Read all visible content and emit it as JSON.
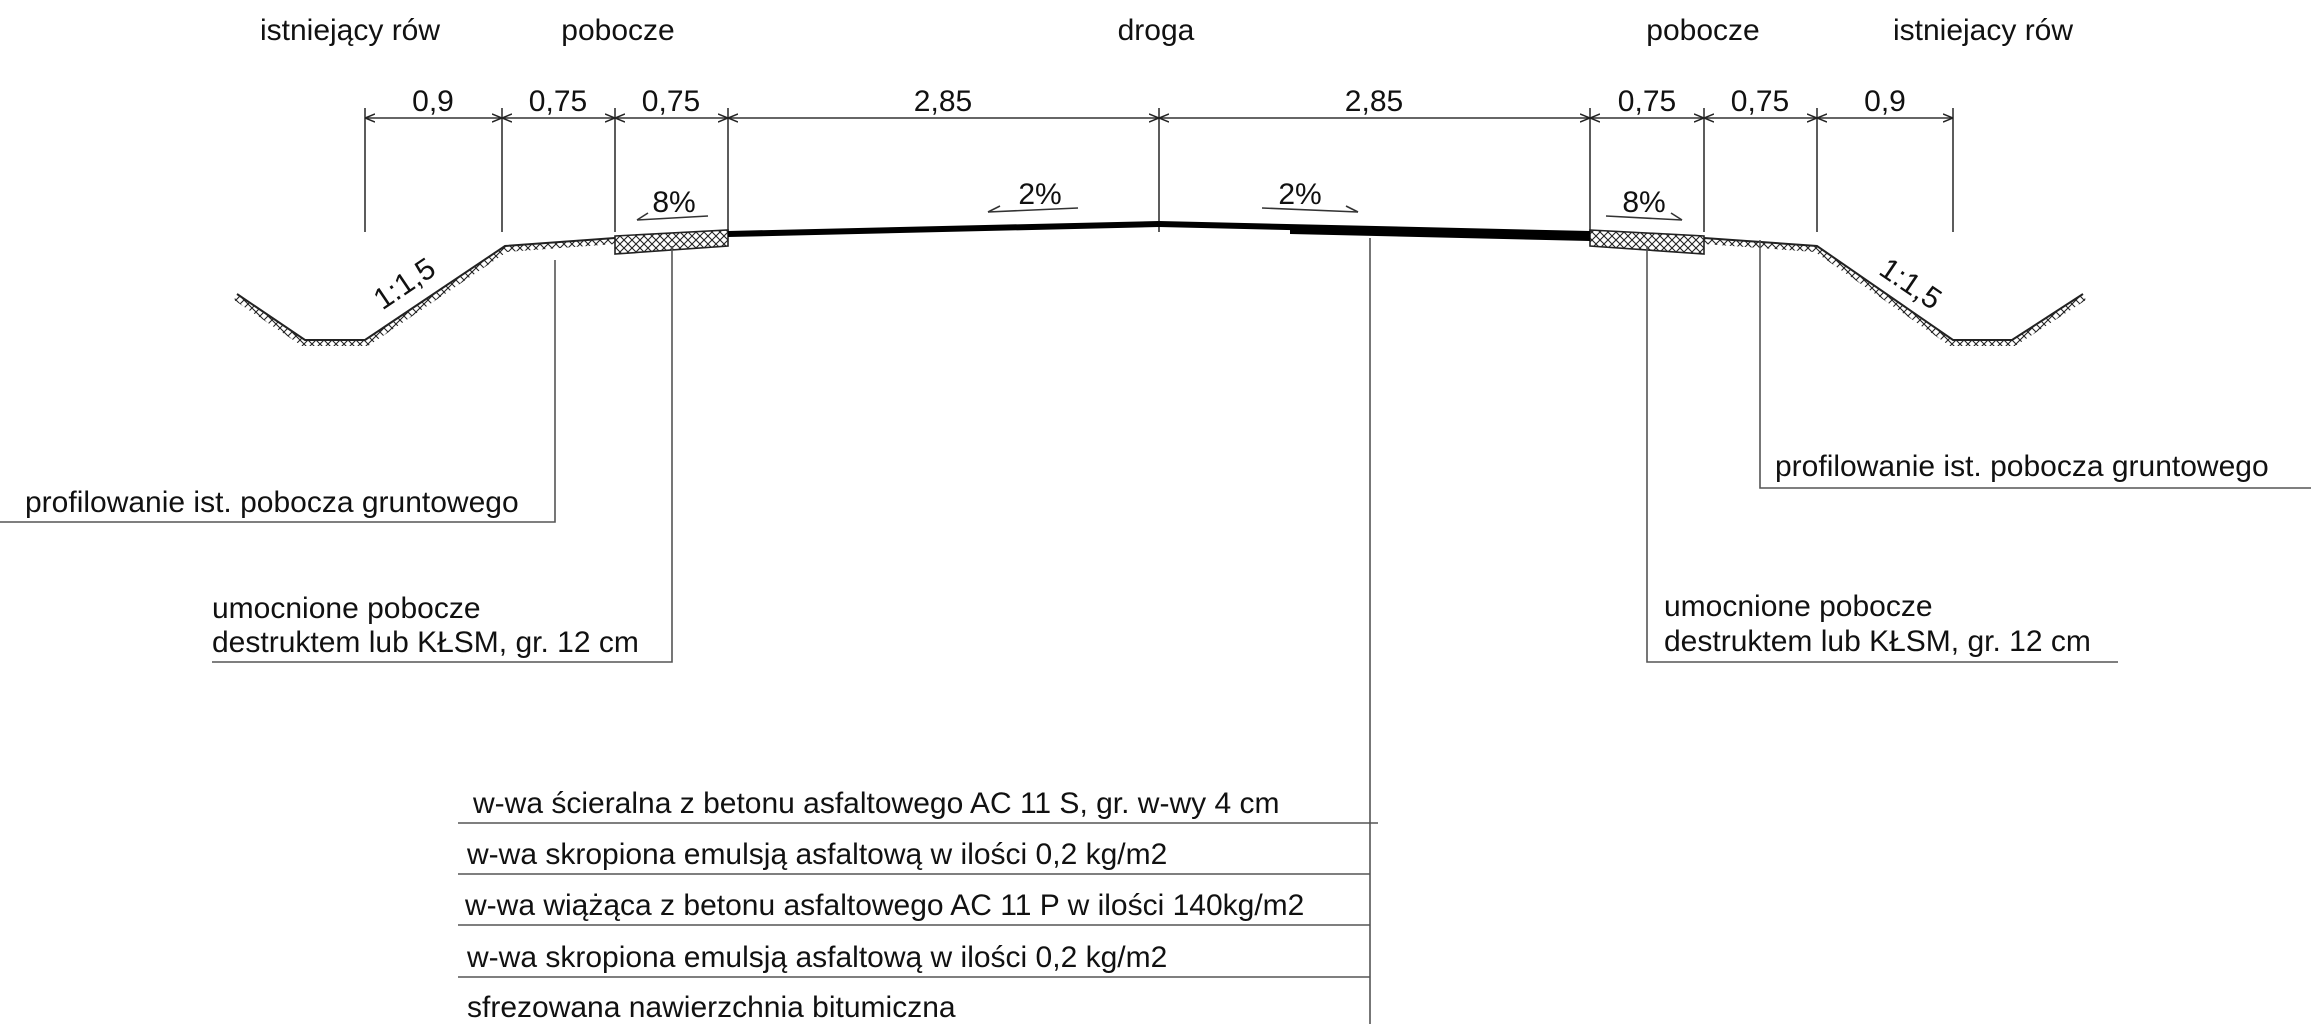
{
  "section_headers": {
    "ditch_left": "istniejący rów",
    "shoulder_left": "pobocze",
    "road": "droga",
    "shoulder_right": "pobocze",
    "ditch_right": "istniejacy rów"
  },
  "dimensions": [
    "0,9",
    "0,75",
    "0,75",
    "2,85",
    "2,85",
    "0,75",
    "0,75",
    "0,9"
  ],
  "slopes": {
    "shoulder_left": "8%",
    "road_left": "2%",
    "road_right": "2%",
    "shoulder_right": "8%",
    "embankment_left": "1:1,5",
    "embankment_right": "1:1,5"
  },
  "callouts": {
    "profiling_left": "profilowanie ist. pobocza gruntowego",
    "profiling_right": "profilowanie ist. pobocza gruntowego",
    "reinforced_left_line1": "umocnione pobocze",
    "reinforced_left_line2": "destruktem lub KŁSM, gr. 12 cm",
    "reinforced_right_line1": "umocnione pobocze",
    "reinforced_right_line2": "destruktem lub KŁSM, gr. 12 cm"
  },
  "layers": [
    "w-wa ścieralna z betonu asfaltowego AC 11 S, gr. w-wy 4 cm",
    "w-wa skropiona emulsją asfaltową w ilości 0,2 kg/m2",
    "w-wa wiążąca z betonu asfaltowego AC 11 P w ilości 140kg/m2",
    "w-wa skropiona emulsją asfaltową w ilości 0,2 kg/m2",
    "sfrezowana nawierzchnia bitumiczna"
  ]
}
